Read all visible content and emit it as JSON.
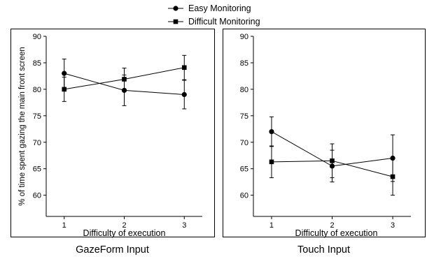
{
  "legend": {
    "placement": "top-center",
    "entries": [
      {
        "name": "Easy Monitoring",
        "marker": "circle"
      },
      {
        "name": "Difficult Monitoring",
        "marker": "square"
      }
    ]
  },
  "ylabel": "% of time spent gazing the main front screen",
  "chart_data": [
    {
      "type": "line",
      "title": "GazeForm Input",
      "xlabel": "Difficulty of execution",
      "ylabel": "% of time spent gazing the main front screen",
      "x": [
        1,
        2,
        3
      ],
      "xlim": [
        0.7,
        3.3
      ],
      "ylim": [
        56,
        90
      ],
      "yticks": [
        60,
        65,
        70,
        75,
        80,
        85,
        90
      ],
      "grid": false,
      "series": [
        {
          "name": "Easy Monitoring",
          "marker": "circle",
          "values": [
            83.0,
            79.8,
            79.0
          ],
          "errors": [
            2.7,
            2.9,
            2.7
          ]
        },
        {
          "name": "Difficult Monitoring",
          "marker": "square",
          "values": [
            80.0,
            81.9,
            84.1
          ],
          "errors": [
            2.3,
            2.1,
            2.3
          ]
        }
      ]
    },
    {
      "type": "line",
      "title": "Touch Input",
      "xlabel": "Difficulty of execution",
      "ylabel": "",
      "x": [
        1,
        2,
        3
      ],
      "xlim": [
        0.7,
        3.3
      ],
      "ylim": [
        56,
        90
      ],
      "yticks": [
        60,
        65,
        70,
        75,
        80,
        85,
        90
      ],
      "grid": false,
      "series": [
        {
          "name": "Easy Monitoring",
          "marker": "circle",
          "values": [
            72.0,
            65.5,
            67.0
          ],
          "errors": [
            2.8,
            3.0,
            4.4
          ]
        },
        {
          "name": "Difficult Monitoring",
          "marker": "square",
          "values": [
            66.3,
            66.5,
            63.5
          ],
          "errors": [
            3.0,
            3.2,
            3.5
          ]
        }
      ]
    }
  ]
}
